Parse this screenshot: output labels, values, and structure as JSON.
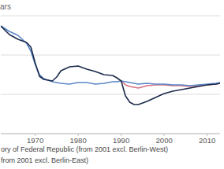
{
  "chart_data": {
    "type": "line",
    "y_label": "ars",
    "x": [
      1962,
      1964,
      1966,
      1968,
      1969,
      1970,
      1971,
      1972,
      1974,
      1975,
      1976,
      1978,
      1980,
      1982,
      1984,
      1986,
      1988,
      1989,
      1990,
      1991,
      1992,
      1993,
      1994,
      1996,
      1998,
      2000,
      2002,
      2004,
      2006,
      2008,
      2010,
      2012,
      2013
    ],
    "xlim": [
      1962,
      2013
    ],
    "xticks": [
      1970,
      1980,
      1990,
      2000,
      2010
    ],
    "ylim": [
      0,
      3
    ],
    "yticks": [
      0,
      1,
      2,
      3
    ],
    "grid": true,
    "tick_labels": "x",
    "legend": "bottom",
    "series": [
      {
        "color": "#d9707e",
        "values": [
          null,
          null,
          null,
          null,
          null,
          null,
          null,
          null,
          null,
          null,
          null,
          null,
          null,
          null,
          null,
          null,
          null,
          null,
          1.34,
          1.24,
          1.2,
          1.18,
          1.16,
          1.22,
          1.24,
          1.24,
          1.22,
          1.22,
          1.2,
          1.22,
          1.24,
          1.26,
          1.28
        ]
      },
      {
        "name": "ory of Federal Republic (from 2001 excl. Berlin-West)",
        "color": "#5b86c8",
        "values": [
          2.74,
          2.6,
          2.5,
          2.3,
          2.1,
          1.76,
          1.5,
          1.4,
          1.32,
          1.3,
          1.28,
          1.26,
          1.3,
          1.3,
          1.26,
          1.28,
          1.32,
          1.32,
          1.34,
          1.32,
          1.3,
          1.28,
          1.26,
          1.28,
          1.26,
          1.26,
          1.24,
          1.24,
          1.22,
          1.24,
          1.26,
          1.28,
          1.3
        ]
      },
      {
        "name": "from 2001 excl. Berlin-East)",
        "color": "#1c2b4b",
        "values": [
          2.74,
          2.52,
          2.4,
          2.32,
          2.2,
          1.8,
          1.46,
          1.38,
          1.34,
          1.44,
          1.6,
          1.7,
          1.72,
          1.64,
          1.58,
          1.5,
          1.48,
          1.42,
          1.34,
          0.96,
          0.8,
          0.74,
          0.74,
          0.82,
          0.92,
          1.02,
          1.08,
          1.12,
          1.16,
          1.2,
          1.24,
          1.26,
          1.28
        ]
      }
    ]
  }
}
